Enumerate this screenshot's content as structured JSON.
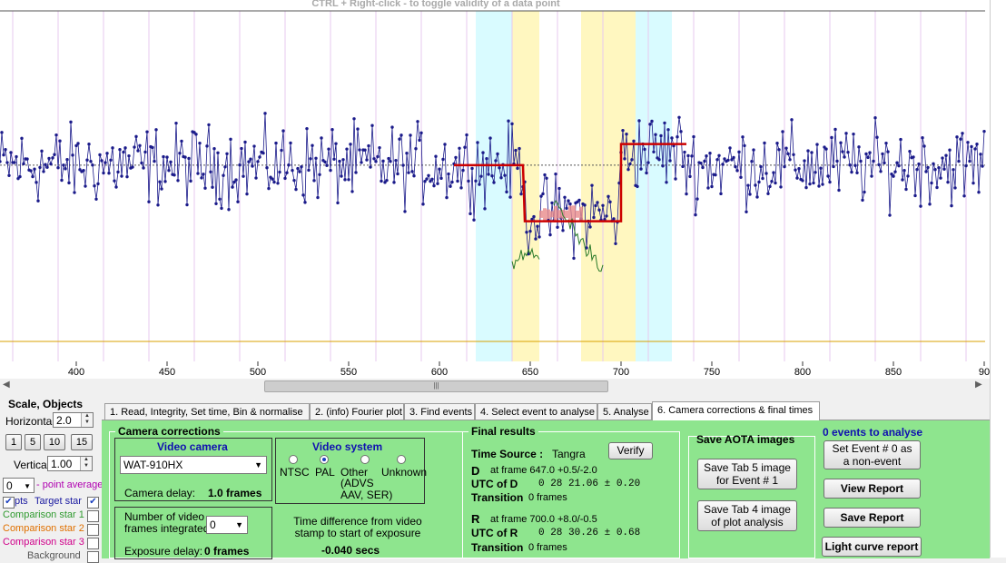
{
  "hint": "CTRL + Right-click  -   to toggle validity of a data point",
  "chart_data": {
    "type": "line",
    "x_ticks": [
      "400",
      "450",
      "500",
      "550",
      "600",
      "650",
      "700",
      "750",
      "800",
      "850",
      "90"
    ],
    "bands": [
      {
        "x_from": 620,
        "x_to": 640,
        "color": "#d9fbff"
      },
      {
        "x_from": 640,
        "x_to": 655,
        "color": "#fff7c0"
      },
      {
        "x_from": 678,
        "x_to": 708,
        "color": "#fff7c0"
      },
      {
        "x_from": 708,
        "x_to": 728,
        "color": "#d9fbff"
      }
    ],
    "model_line": [
      [
        608,
        0.56
      ],
      [
        646,
        0.56
      ],
      [
        647,
        0.4
      ],
      [
        700,
        0.4
      ],
      [
        700,
        0.62
      ],
      [
        736,
        0.62
      ]
    ],
    "baseline_level": 0.56,
    "series_color": "#1a1a8a",
    "model_color": "#cc0000"
  },
  "left": {
    "scale_title": "Scale,  Objects",
    "horizontal_label": "Horizontal",
    "horizontal_value": "2.0",
    "vertical_label": "Vertical",
    "vertical_value": "1.00",
    "scale_buttons": [
      "1",
      "5",
      "10",
      "15"
    ],
    "point_avg_value": "0",
    "point_avg_label": "- point average",
    "pts_label": "pts",
    "target_label": "Target star",
    "comp1": "Comparison star 1",
    "comp2": "Comparison star 2",
    "comp3": "Comparison star 3",
    "background": "Background"
  },
  "tabs": [
    "1.  Read, Integrity, Set time, Bin & normalise",
    "2. (info)  Fourier plot",
    "3. Find events",
    "4. Select event to analyse",
    "5. Analyse",
    "6. Camera corrections & final times"
  ],
  "camera": {
    "group_title": "Camera corrections",
    "video_camera_title": "Video camera",
    "camera_model": "WAT-910HX",
    "camera_delay_label": "Camera delay:",
    "camera_delay_value": "1.0 frames",
    "video_system_title": "Video system",
    "ntsc": "NTSC",
    "pal": "PAL",
    "other": "Other",
    "other_detail": "(ADVS\nAAV, SER)",
    "unknown": "Unknown",
    "frames_integrated_label": "Number of video\nframes integrated",
    "frames_integrated_value": "0",
    "exposure_delay_label": "Exposure delay:",
    "exposure_delay_value": "0 frames",
    "time_diff_label": "Time difference from video\nstamp to start of exposure",
    "time_diff_value": "-0.040 secs"
  },
  "final": {
    "group_title": "Final results",
    "time_source_label": "Time Source :",
    "time_source_value": "Tangra",
    "verify": "Verify",
    "d_label": "D",
    "d_frame": "at frame 647.0  +0.5/-2.0",
    "utc_d_label": "UTC of D",
    "utc_d_value": "0 28 21.06 ± 0.20",
    "transition_label": "Transition",
    "d_transition": "0 frames",
    "r_label": "R",
    "r_frame": "at frame 700.0  +8.0/-0.5",
    "utc_r_label": "UTC of R",
    "utc_r_value": "0 28 30.26 ± 0.68",
    "r_transition": "0 frames"
  },
  "aota": {
    "group_title": "Save AOTA images",
    "save_tab5": "Save Tab 5 image\nfor Event # 1",
    "save_tab4": "Save Tab 4 image\nof plot analysis"
  },
  "events": {
    "count_label": "0 events to analyse",
    "set_event": "Set Event # 0 as\na non-event",
    "view_report": "View Report",
    "save_report": "Save Report",
    "light_curve_report": "Light curve report"
  }
}
